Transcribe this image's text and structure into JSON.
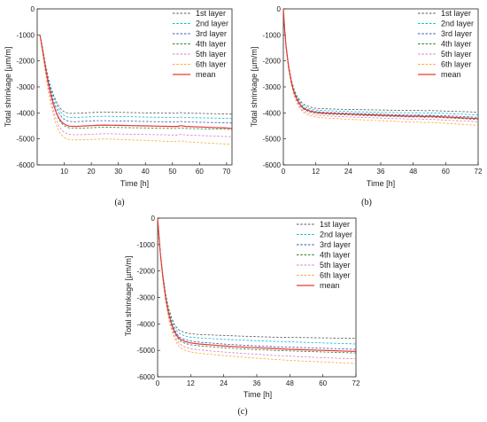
{
  "chart_data": [
    {
      "panel_label": "(a)",
      "type": "line",
      "xlabel": "Time [h]",
      "ylabel": "Total shrinkage [µm/m]",
      "xlim": [
        0,
        72
      ],
      "ylim": [
        -6000,
        0
      ],
      "xticks": [
        10,
        20,
        30,
        40,
        50,
        60,
        70
      ],
      "yticks": [
        0,
        -1000,
        -2000,
        -3000,
        -4000,
        -5000,
        -6000
      ],
      "legend_position": "top-right",
      "x": [
        1,
        2,
        3,
        4,
        5,
        6,
        7,
        8,
        9,
        10,
        11,
        12,
        14,
        16,
        18,
        20,
        22,
        25,
        30,
        35,
        40,
        45,
        50,
        52,
        53,
        55,
        60,
        65,
        70,
        72
      ],
      "series": [
        {
          "name": "1st layer",
          "color": "#555555",
          "style": "dashed",
          "values": [
            -1000,
            -1500,
            -2100,
            -2600,
            -3000,
            -3300,
            -3550,
            -3750,
            -3880,
            -3960,
            -4000,
            -4020,
            -4020,
            -4010,
            -4000,
            -3990,
            -3980,
            -3970,
            -3980,
            -3990,
            -4000,
            -4000,
            -4010,
            -4010,
            -3990,
            -4010,
            -4020,
            -4030,
            -4040,
            -4050
          ]
        },
        {
          "name": "2nd layer",
          "color": "#00bcd4",
          "style": "dashed",
          "values": [
            -1000,
            -1500,
            -2100,
            -2600,
            -3050,
            -3400,
            -3650,
            -3850,
            -4000,
            -4100,
            -4150,
            -4180,
            -4180,
            -4170,
            -4160,
            -4150,
            -4140,
            -4130,
            -4140,
            -4150,
            -4160,
            -4170,
            -4180,
            -4180,
            -4160,
            -4180,
            -4190,
            -4200,
            -4210,
            -4220
          ]
        },
        {
          "name": "3rd layer",
          "color": "#3f51b5",
          "style": "dashed",
          "values": [
            -1000,
            -1550,
            -2150,
            -2700,
            -3150,
            -3550,
            -3800,
            -4000,
            -4150,
            -4250,
            -4300,
            -4330,
            -4340,
            -4330,
            -4320,
            -4310,
            -4300,
            -4300,
            -4310,
            -4320,
            -4330,
            -4340,
            -4350,
            -4350,
            -4330,
            -4350,
            -4360,
            -4370,
            -4380,
            -4390
          ]
        },
        {
          "name": "4th layer",
          "color": "#2e7d32",
          "style": "dashed",
          "values": [
            -1000,
            -1600,
            -2250,
            -2800,
            -3300,
            -3700,
            -4000,
            -4250,
            -4400,
            -4500,
            -4550,
            -4580,
            -4590,
            -4590,
            -4580,
            -4570,
            -4560,
            -4550,
            -4560,
            -4570,
            -4580,
            -4590,
            -4600,
            -4600,
            -4570,
            -4600,
            -4610,
            -4620,
            -4630,
            -4640
          ]
        },
        {
          "name": "5th layer",
          "color": "#d87ad0",
          "style": "dashed",
          "values": [
            -1000,
            -1650,
            -2350,
            -2950,
            -3450,
            -3900,
            -4250,
            -4500,
            -4650,
            -4750,
            -4800,
            -4830,
            -4840,
            -4840,
            -4830,
            -4820,
            -4810,
            -4800,
            -4810,
            -4820,
            -4830,
            -4840,
            -4850,
            -4850,
            -4820,
            -4850,
            -4870,
            -4890,
            -4910,
            -4920
          ]
        },
        {
          "name": "6th layer",
          "color": "#ffa726",
          "style": "dashed",
          "values": [
            -1000,
            -1700,
            -2450,
            -3100,
            -3650,
            -4100,
            -4450,
            -4700,
            -4850,
            -4950,
            -5000,
            -5030,
            -5040,
            -5040,
            -5030,
            -5020,
            -5010,
            -5000,
            -5020,
            -5040,
            -5060,
            -5080,
            -5100,
            -5100,
            -5070,
            -5110,
            -5140,
            -5170,
            -5200,
            -5220
          ]
        },
        {
          "name": "mean",
          "color": "#e53935",
          "style": "solid",
          "values": [
            -1000,
            -1580,
            -2230,
            -2800,
            -3270,
            -3660,
            -3970,
            -4200,
            -4340,
            -4430,
            -4480,
            -4510,
            -4520,
            -4510,
            -4500,
            -4490,
            -4480,
            -4470,
            -4480,
            -4490,
            -4500,
            -4510,
            -4520,
            -4520,
            -4490,
            -4520,
            -4540,
            -4560,
            -4580,
            -4600
          ]
        }
      ]
    },
    {
      "panel_label": "(b)",
      "type": "line",
      "xlabel": "Time [h]",
      "ylabel": "Total shrinkage [µm/m]",
      "xlim": [
        0,
        72
      ],
      "ylim": [
        -6000,
        0
      ],
      "xticks": [
        0,
        12,
        24,
        36,
        48,
        60,
        72
      ],
      "yticks": [
        0,
        -1000,
        -2000,
        -3000,
        -4000,
        -5000,
        -6000
      ],
      "legend_position": "top-right",
      "x": [
        0,
        0.5,
        1,
        2,
        3,
        4,
        5,
        6,
        7,
        8,
        10,
        12,
        15,
        20,
        25,
        30,
        36,
        42,
        48,
        50,
        52,
        54,
        60,
        66,
        72
      ],
      "series": [
        {
          "name": "1st layer",
          "color": "#555555",
          "style": "dashed",
          "values": [
            0,
            -800,
            -1400,
            -2200,
            -2750,
            -3100,
            -3350,
            -3500,
            -3620,
            -3700,
            -3780,
            -3820,
            -3840,
            -3860,
            -3870,
            -3880,
            -3890,
            -3900,
            -3910,
            -3900,
            -3920,
            -3910,
            -3930,
            -3950,
            -3970
          ]
        },
        {
          "name": "2nd layer",
          "color": "#00bcd4",
          "style": "dashed",
          "values": [
            0,
            -800,
            -1420,
            -2230,
            -2790,
            -3150,
            -3400,
            -3560,
            -3690,
            -3770,
            -3850,
            -3890,
            -3910,
            -3930,
            -3950,
            -3960,
            -3980,
            -3990,
            -4000,
            -3990,
            -4010,
            -4000,
            -4020,
            -4050,
            -4080
          ]
        },
        {
          "name": "3rd layer",
          "color": "#3f51b5",
          "style": "dashed",
          "values": [
            0,
            -800,
            -1440,
            -2260,
            -2830,
            -3200,
            -3450,
            -3620,
            -3750,
            -3830,
            -3910,
            -3950,
            -3980,
            -4000,
            -4020,
            -4030,
            -4050,
            -4070,
            -4090,
            -4080,
            -4100,
            -4090,
            -4110,
            -4140,
            -4170
          ]
        },
        {
          "name": "4th layer",
          "color": "#2e7d32",
          "style": "dashed",
          "values": [
            0,
            -800,
            -1460,
            -2290,
            -2870,
            -3250,
            -3500,
            -3680,
            -3810,
            -3890,
            -3970,
            -4010,
            -4040,
            -4060,
            -4080,
            -4100,
            -4120,
            -4140,
            -4160,
            -4150,
            -4170,
            -4160,
            -4190,
            -4220,
            -4250
          ]
        },
        {
          "name": "5th layer",
          "color": "#d87ad0",
          "style": "dashed",
          "values": [
            0,
            -800,
            -1480,
            -2320,
            -2910,
            -3300,
            -3560,
            -3740,
            -3880,
            -3960,
            -4040,
            -4080,
            -4110,
            -4140,
            -4160,
            -4180,
            -4200,
            -4220,
            -4240,
            -4230,
            -4250,
            -4240,
            -4280,
            -4310,
            -4340
          ]
        },
        {
          "name": "6th layer",
          "color": "#ffa726",
          "style": "dashed",
          "values": [
            0,
            -800,
            -1500,
            -2350,
            -2950,
            -3350,
            -3620,
            -3800,
            -3940,
            -4030,
            -4110,
            -4160,
            -4190,
            -4220,
            -4250,
            -4270,
            -4300,
            -4330,
            -4360,
            -4350,
            -4370,
            -4360,
            -4400,
            -4440,
            -4480
          ]
        },
        {
          "name": "mean",
          "color": "#e53935",
          "style": "solid",
          "values": [
            0,
            -800,
            -1450,
            -2270,
            -2840,
            -3220,
            -3470,
            -3650,
            -3780,
            -3860,
            -3940,
            -3980,
            -4010,
            -4030,
            -4050,
            -4070,
            -4090,
            -4110,
            -4130,
            -4120,
            -4140,
            -4130,
            -4160,
            -4190,
            -4220
          ]
        }
      ]
    },
    {
      "panel_label": "(c)",
      "type": "line",
      "xlabel": "Time [h]",
      "ylabel": "Total shrinkage [µm/m]",
      "xlim": [
        0,
        72
      ],
      "ylim": [
        -6000,
        0
      ],
      "xticks": [
        0,
        12,
        24,
        36,
        48,
        60,
        72
      ],
      "yticks": [
        0,
        -1000,
        -2000,
        -3000,
        -4000,
        -5000,
        -6000
      ],
      "legend_position": "top-right",
      "x": [
        0,
        0.5,
        1,
        2,
        3,
        4,
        5,
        6,
        7,
        8,
        10,
        12,
        15,
        20,
        25,
        30,
        36,
        42,
        48,
        54,
        60,
        66,
        72
      ],
      "series": [
        {
          "name": "1st layer",
          "color": "#555555",
          "style": "dashed",
          "values": [
            0,
            -700,
            -1300,
            -2200,
            -2900,
            -3400,
            -3750,
            -4000,
            -4150,
            -4250,
            -4330,
            -4370,
            -4400,
            -4420,
            -4440,
            -4460,
            -4480,
            -4500,
            -4510,
            -4520,
            -4530,
            -4540,
            -4550
          ]
        },
        {
          "name": "2nd layer",
          "color": "#00bcd4",
          "style": "dashed",
          "values": [
            0,
            -700,
            -1320,
            -2240,
            -2960,
            -3480,
            -3840,
            -4100,
            -4260,
            -4370,
            -4460,
            -4500,
            -4530,
            -4560,
            -4590,
            -4610,
            -4640,
            -4660,
            -4680,
            -4700,
            -4720,
            -4740,
            -4760
          ]
        },
        {
          "name": "3rd layer",
          "color": "#3f51b5",
          "style": "dashed",
          "values": [
            0,
            -700,
            -1340,
            -2280,
            -3020,
            -3560,
            -3940,
            -4200,
            -4380,
            -4500,
            -4600,
            -4650,
            -4690,
            -4730,
            -4770,
            -4800,
            -4830,
            -4860,
            -4880,
            -4900,
            -4920,
            -4940,
            -4960
          ]
        },
        {
          "name": "4th layer",
          "color": "#2e7d32",
          "style": "dashed",
          "values": [
            0,
            -700,
            -1360,
            -2320,
            -3080,
            -3640,
            -4040,
            -4310,
            -4500,
            -4630,
            -4740,
            -4790,
            -4830,
            -4870,
            -4910,
            -4940,
            -4970,
            -5000,
            -5020,
            -5040,
            -5060,
            -5080,
            -5100
          ]
        },
        {
          "name": "5th layer",
          "color": "#d87ad0",
          "style": "dashed",
          "values": [
            0,
            -700,
            -1380,
            -2360,
            -3140,
            -3720,
            -4130,
            -4420,
            -4620,
            -4760,
            -4880,
            -4940,
            -4980,
            -5030,
            -5070,
            -5110,
            -5150,
            -5190,
            -5220,
            -5250,
            -5280,
            -5300,
            -5320
          ]
        },
        {
          "name": "6th layer",
          "color": "#ffa726",
          "style": "dashed",
          "values": [
            0,
            -700,
            -1400,
            -2400,
            -3200,
            -3800,
            -4220,
            -4520,
            -4730,
            -4880,
            -5000,
            -5060,
            -5110,
            -5160,
            -5210,
            -5250,
            -5300,
            -5340,
            -5380,
            -5410,
            -5440,
            -5470,
            -5500
          ]
        },
        {
          "name": "mean",
          "color": "#e53935",
          "style": "solid",
          "values": [
            0,
            -700,
            -1350,
            -2300,
            -3050,
            -3600,
            -3990,
            -4260,
            -4440,
            -4570,
            -4670,
            -4720,
            -4760,
            -4800,
            -4840,
            -4870,
            -4900,
            -4930,
            -4960,
            -4980,
            -5000,
            -5020,
            -5040
          ]
        }
      ]
    }
  ]
}
